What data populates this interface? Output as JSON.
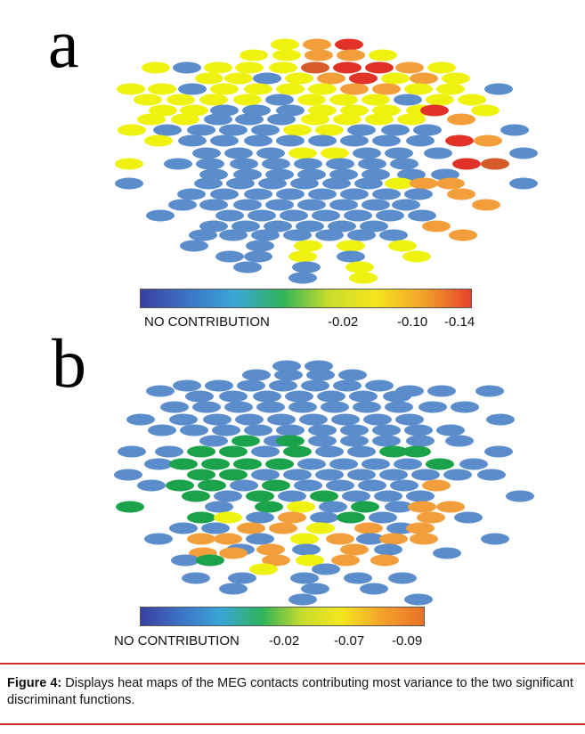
{
  "panels": [
    {
      "letter": "a",
      "colorbar_labels": [
        "NO CONTRIBUTION",
        "-0.02",
        "-0.10",
        "-0.14"
      ],
      "colorbar_colors": [
        "#3a3fa0",
        "#3d74c7",
        "#3aa6d6",
        "#2fb35a",
        "#c8dc2c",
        "#f5e51e",
        "#f3a02b",
        "#e8422a"
      ],
      "sensor_colors": {
        "none": "#5b8dcc",
        "y": "#eef20e",
        "o": "#f29e3b",
        "r": "#e23228",
        "dr": "#d65a2a"
      }
    },
    {
      "letter": "b",
      "colorbar_labels": [
        "NO CONTRIBUTION",
        "-0.02",
        "-0.07",
        "-0.09"
      ],
      "colorbar_colors": [
        "#3a3fa0",
        "#3d74c7",
        "#3aa6d6",
        "#2fb35a",
        "#c8dc2c",
        "#f5e51e",
        "#f3a02b",
        "#e8712a"
      ],
      "sensor_colors": {
        "none": "#5b8dcc",
        "g": "#1aa34a",
        "y": "#eef20e",
        "o": "#f29e3b"
      }
    }
  ],
  "caption": {
    "label": "Figure 4:",
    "text": " Displays heat maps of the MEG contacts contributing most variance to the two significant discriminant functions."
  }
}
